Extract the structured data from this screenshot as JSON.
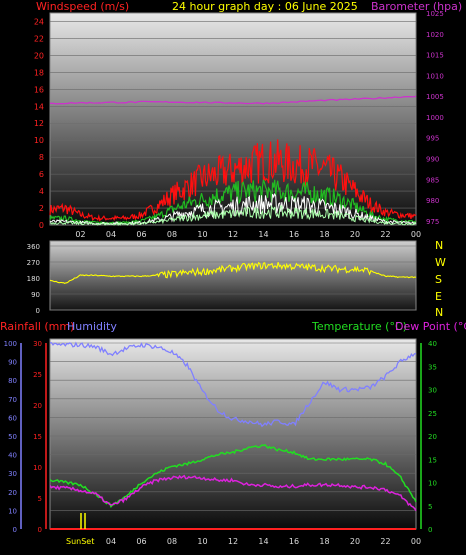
{
  "header": {
    "left_title": "Windspeed (m/s)",
    "center_title": "24 hour graph day : 06 June 2025",
    "right_title": "Barometer (hpa)"
  },
  "colors": {
    "wind_axis": "#ff2222",
    "baro_axis": "#cc33cc",
    "title": "#ffff00",
    "wind_gust": "#ff1010",
    "wind_avg": "#22bb22",
    "wind_low": "#ffffff",
    "wind_min": "#aaffaa",
    "baro_line": "#cc33cc",
    "dir_line": "#ffff00",
    "rain": "#ff2020",
    "humidity": "#8080ff",
    "temperature": "#22dd22",
    "dewpoint": "#dd22dd",
    "sun": "#ffff00",
    "grid": "#6a6a6a"
  },
  "x_ticks": [
    "02",
    "04",
    "06",
    "08",
    "10",
    "12",
    "14",
    "16",
    "18",
    "20",
    "22",
    "00"
  ],
  "direction_labels": [
    "N",
    "W",
    "S",
    "E",
    "N"
  ],
  "lower_header": {
    "rain_label": "Rainfall (mm)",
    "humidity_label": "Humidity",
    "temp_label": "Temperature (°C)",
    "dew_label": "Dew Point (°C)"
  },
  "sun_label": "SunSet",
  "chart_data": [
    {
      "type": "line",
      "title": "24 hour graph day : 06 June 2025",
      "ylabel_left": "Windspeed (m/s)",
      "ylabel_right": "Barometer (hpa)",
      "ylim_left": [
        0,
        25
      ],
      "ylim_right": [
        974,
        1025
      ],
      "yticks_left": [
        0,
        2,
        4,
        6,
        8,
        10,
        12,
        14,
        16,
        18,
        20,
        22,
        24
      ],
      "yticks_right": [
        975,
        980,
        985,
        990,
        995,
        1000,
        1005,
        1010,
        1015,
        1020,
        1025
      ],
      "x_hours": [
        0,
        1,
        2,
        3,
        4,
        5,
        6,
        7,
        8,
        9,
        10,
        11,
        12,
        13,
        14,
        15,
        16,
        17,
        18,
        19,
        20,
        21,
        22,
        23,
        24
      ],
      "series": [
        {
          "name": "gust",
          "axis": "left",
          "values": [
            1.8,
            2,
            1.2,
            0.8,
            0.8,
            0.8,
            1.2,
            2.2,
            3.5,
            4.5,
            5.5,
            6,
            6.5,
            7,
            7.5,
            7.5,
            7,
            7,
            6.5,
            5.5,
            4,
            2.5,
            1.5,
            1.2,
            1.0
          ]
        },
        {
          "name": "average",
          "axis": "left",
          "values": [
            0.8,
            0.8,
            0.5,
            0.3,
            0.3,
            0.3,
            0.5,
            1,
            1.8,
            2.5,
            3,
            3.5,
            3.8,
            4,
            4,
            4,
            3.8,
            3.8,
            3.5,
            3,
            2.2,
            1.2,
            0.7,
            0.5,
            0.4
          ]
        },
        {
          "name": "low",
          "axis": "left",
          "values": [
            0.4,
            0.4,
            0.3,
            0.2,
            0.2,
            0.2,
            0.3,
            0.6,
            1,
            1.5,
            1.8,
            2,
            2.2,
            2.4,
            2.5,
            2.5,
            2.4,
            2.3,
            2.1,
            1.8,
            1.3,
            0.8,
            0.4,
            0.3,
            0.2
          ]
        },
        {
          "name": "barometer",
          "axis": "right",
          "values": [
            1003.2,
            1003.3,
            1003.4,
            1003.4,
            1003.5,
            1003.5,
            1003.6,
            1003.6,
            1003.6,
            1003.5,
            1003.5,
            1003.4,
            1003.4,
            1003.3,
            1003.3,
            1003.4,
            1003.6,
            1003.8,
            1004,
            1004.1,
            1004.3,
            1004.4,
            1004.6,
            1004.8,
            1005
          ]
        }
      ]
    },
    {
      "type": "line",
      "title": "",
      "ylim": [
        0,
        360
      ],
      "yticks": [
        0,
        90,
        180,
        270,
        360
      ],
      "x_hours": [
        0,
        1,
        2,
        3,
        4,
        5,
        6,
        7,
        8,
        9,
        10,
        11,
        12,
        13,
        14,
        15,
        16,
        17,
        18,
        19,
        20,
        21,
        22,
        23,
        24
      ],
      "series": [
        {
          "name": "direction",
          "values": [
            165,
            150,
            195,
            195,
            190,
            190,
            190,
            195,
            200,
            210,
            215,
            225,
            235,
            245,
            250,
            250,
            245,
            240,
            235,
            230,
            230,
            220,
            190,
            185,
            185
          ]
        }
      ]
    },
    {
      "type": "line",
      "title": "",
      "ylim_left_humidity": [
        0,
        100
      ],
      "ylim_left_rain": [
        0,
        30
      ],
      "ylim_right": [
        0,
        40
      ],
      "yticks_humidity": [
        0,
        10,
        20,
        30,
        40,
        50,
        60,
        70,
        80,
        90,
        100
      ],
      "yticks_rain": [
        0,
        5,
        10,
        15,
        20,
        25,
        30
      ],
      "yticks_right": [
        0,
        5,
        10,
        15,
        20,
        25,
        30,
        35,
        40
      ],
      "x_hours": [
        0,
        1,
        2,
        3,
        4,
        5,
        6,
        7,
        8,
        9,
        10,
        11,
        12,
        13,
        14,
        15,
        16,
        17,
        18,
        19,
        20,
        21,
        22,
        23,
        24
      ],
      "series": [
        {
          "name": "Humidity",
          "axis": "humidity",
          "values": [
            99,
            99,
            99,
            98,
            94,
            97,
            99,
            98,
            95,
            88,
            74,
            64,
            59,
            58,
            56,
            58,
            56,
            68,
            79,
            75,
            75,
            76,
            82,
            90,
            95
          ]
        },
        {
          "name": "Rainfall (mm)",
          "axis": "rain",
          "values": [
            0,
            0,
            0,
            0,
            0,
            0,
            0,
            0,
            0,
            0,
            0,
            0,
            0,
            0,
            0,
            0,
            0,
            0,
            0,
            0,
            0,
            0,
            0,
            0,
            0
          ]
        },
        {
          "name": "Temperature (°C)",
          "axis": "right",
          "values": [
            10.5,
            10,
            9.5,
            7.5,
            5,
            7,
            10,
            12,
            13.5,
            14,
            15,
            16,
            16.5,
            17.5,
            18,
            17,
            16.5,
            15,
            15,
            15,
            15,
            15,
            14,
            11,
            6
          ]
        },
        {
          "name": "Dew Point (°C)",
          "axis": "right",
          "values": [
            9,
            8.8,
            8.3,
            7.5,
            5,
            6.5,
            9,
            10.5,
            11,
            11.2,
            11,
            10.5,
            10.5,
            9.5,
            9.5,
            9,
            9.2,
            9.5,
            9.5,
            9.5,
            9,
            9,
            8.5,
            7,
            4
          ]
        }
      ]
    }
  ]
}
